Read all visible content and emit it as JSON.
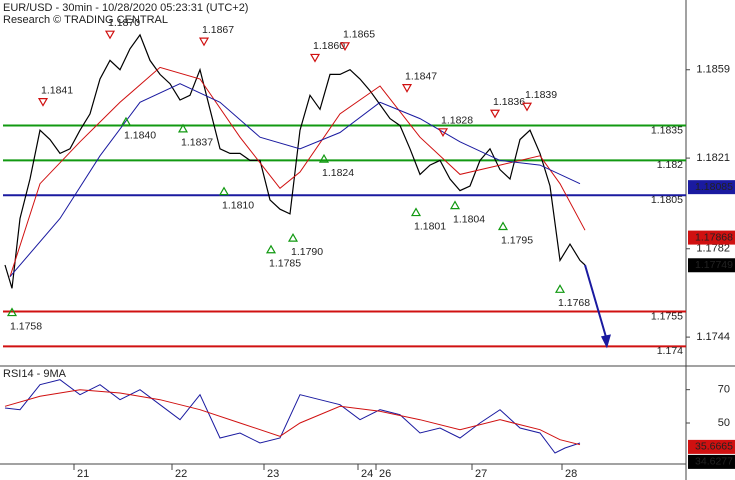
{
  "chart_data": [
    {
      "type": "line",
      "title": "EUR/USD - 30min - 10/28/2020 05:23:31 (UTC+2)",
      "subtitle": "Research © TRADING CENTRAL",
      "xlim": [
        0,
        343
      ],
      "ylim": [
        1.1732,
        1.1889
      ],
      "yticks": [
        1.1859,
        1.1821,
        1.1782,
        1.1744
      ],
      "series": [
        {
          "color": "#000000",
          "x": [
            2.5,
            6,
            10,
            15,
            20,
            25,
            30,
            35,
            40,
            45,
            50,
            55,
            60,
            65,
            70,
            75,
            80,
            85,
            90,
            95,
            100,
            105,
            110,
            115,
            120,
            125,
            130,
            135,
            140,
            145,
            150,
            155,
            160,
            165,
            170,
            175,
            180,
            185,
            190,
            195,
            200,
            205,
            210,
            215,
            220,
            225,
            230,
            235,
            240,
            245,
            250,
            255,
            260,
            265,
            270,
            275,
            280,
            285,
            290,
            292.5
          ],
          "values": [
            1.1775,
            1.1765,
            1.1795,
            1.1812,
            1.1833,
            1.1829,
            1.1823,
            1.1825,
            1.1833,
            1.184,
            1.1855,
            1.1863,
            1.1859,
            1.1868,
            1.1874,
            1.1863,
            1.1857,
            1.1853,
            1.1846,
            1.1848,
            1.1859,
            1.1842,
            1.1825,
            1.1823,
            1.1823,
            1.182,
            1.182,
            1.1803,
            1.1799,
            1.1797,
            1.1833,
            1.1848,
            1.1842,
            1.1857,
            1.1857,
            1.1859,
            1.1855,
            1.185,
            1.1844,
            1.1838,
            1.1835,
            1.1825,
            1.1814,
            1.1818,
            1.182,
            1.1812,
            1.1807,
            1.1809,
            1.182,
            1.1825,
            1.1816,
            1.1812,
            1.1829,
            1.1833,
            1.1823,
            1.1809,
            1.1777,
            1.1784,
            1.1777,
            1.1775
          ]
        },
        {
          "color": "#d01010",
          "x": [
            5,
            20,
            40,
            60,
            80,
            100,
            120,
            140,
            150,
            170,
            190,
            210,
            230,
            250,
            270,
            280,
            292.5
          ],
          "values": [
            1.177,
            1.181,
            1.1828,
            1.1845,
            1.186,
            1.1855,
            1.183,
            1.1808,
            1.1815,
            1.184,
            1.1852,
            1.183,
            1.1814,
            1.1818,
            1.1822,
            1.181,
            1.179
          ]
        },
        {
          "color": "#1a1aa0",
          "x": [
            5,
            30,
            50,
            70,
            90,
            110,
            130,
            150,
            170,
            190,
            210,
            230,
            250,
            270,
            290
          ],
          "values": [
            1.177,
            1.1795,
            1.1822,
            1.1845,
            1.1853,
            1.1845,
            1.183,
            1.1825,
            1.1832,
            1.1845,
            1.1838,
            1.1828,
            1.182,
            1.1818,
            1.181
          ]
        }
      ],
      "levels": [
        {
          "value": 1.1835,
          "color": "#119911"
        },
        {
          "value": 1.182,
          "color": "#119911"
        },
        {
          "value": 1.1805,
          "color": "#1a1aa0"
        },
        {
          "value": 1.1755,
          "color": "#d01010"
        },
        {
          "value": 1.174,
          "color": "#d01010"
        }
      ],
      "annotations": [
        {
          "x": 21.5,
          "value": 1.1841,
          "kind": "high"
        },
        {
          "x": 55,
          "value": 1.187,
          "label": "1.1870",
          "kind": "high"
        },
        {
          "x": 102,
          "value": 1.1867,
          "kind": "high"
        },
        {
          "x": 157.5,
          "value": 1.186,
          "label": "1.1860",
          "kind": "high"
        },
        {
          "x": 172.5,
          "value": 1.1865,
          "kind": "high"
        },
        {
          "x": 203.5,
          "value": 1.1847,
          "kind": "high"
        },
        {
          "x": 221.5,
          "value": 1.1828,
          "kind": "high"
        },
        {
          "x": 247.5,
          "value": 1.1836,
          "kind": "high"
        },
        {
          "x": 263.5,
          "value": 1.1839,
          "kind": "high"
        },
        {
          "x": 6,
          "value": 1.1758,
          "kind": "low"
        },
        {
          "x": 63,
          "value": 1.184,
          "label": "1.1840",
          "kind": "low"
        },
        {
          "x": 91.5,
          "value": 1.1837,
          "kind": "low"
        },
        {
          "x": 112,
          "value": 1.181,
          "label": "1.1810",
          "kind": "low"
        },
        {
          "x": 135.5,
          "value": 1.1785,
          "kind": "low"
        },
        {
          "x": 146.5,
          "value": 1.179,
          "label": "1.1790",
          "kind": "low"
        },
        {
          "x": 162,
          "value": 1.1824,
          "kind": "low"
        },
        {
          "x": 208,
          "value": 1.1801,
          "kind": "low"
        },
        {
          "x": 227.5,
          "value": 1.1804,
          "kind": "low"
        },
        {
          "x": 251.5,
          "value": 1.1795,
          "kind": "low"
        },
        {
          "x": 280,
          "value": 1.1768,
          "kind": "low"
        }
      ],
      "price_boxes": [
        {
          "value": 1.18085,
          "color": "#1a1aa0"
        },
        {
          "value": 1.17868,
          "color": "#d01010"
        },
        {
          "value": 1.17749,
          "color": "#000000"
        }
      ]
    },
    {
      "type": "line",
      "title": "RSI14 - 9MA",
      "xlim": [
        0,
        343
      ],
      "ylim": [
        26,
        83
      ],
      "yticks": [
        70,
        50
      ],
      "xticks": [
        {
          "value": 37,
          "label": "21"
        },
        {
          "value": 86,
          "label": "22"
        },
        {
          "value": 132,
          "label": "23"
        },
        {
          "value": 179,
          "label": "24"
        },
        {
          "value": 188,
          "label": "26"
        },
        {
          "value": 236,
          "label": "27"
        },
        {
          "value": 281,
          "label": "28"
        }
      ],
      "series": [
        {
          "color": "#1a1aa0",
          "x": [
            2.5,
            10,
            20,
            30,
            40,
            50,
            60,
            70,
            80,
            90,
            100,
            110,
            120,
            130,
            140,
            150,
            160,
            170,
            180,
            190,
            200,
            210,
            220,
            230,
            240,
            250,
            260,
            270,
            277.5,
            282.5,
            290
          ],
          "values": [
            59,
            58,
            73,
            76,
            67,
            73,
            64,
            70,
            61,
            52,
            67,
            41,
            44,
            38,
            41,
            67,
            64,
            61,
            52,
            58,
            55,
            44,
            47,
            41,
            50,
            58,
            47,
            44,
            32,
            35,
            38
          ]
        },
        {
          "color": "#d01010",
          "x": [
            2.5,
            20,
            40,
            60,
            80,
            100,
            120,
            140,
            150,
            170,
            190,
            210,
            230,
            250,
            270,
            280,
            290
          ],
          "values": [
            60,
            66,
            70,
            68,
            64,
            58,
            50,
            42,
            50,
            60,
            57,
            52,
            46,
            52,
            46,
            40,
            37
          ]
        }
      ],
      "price_boxes": [
        {
          "value": 35.6665,
          "color": "#d01010"
        },
        {
          "value": 34.6277,
          "color": "#000000"
        }
      ]
    }
  ]
}
